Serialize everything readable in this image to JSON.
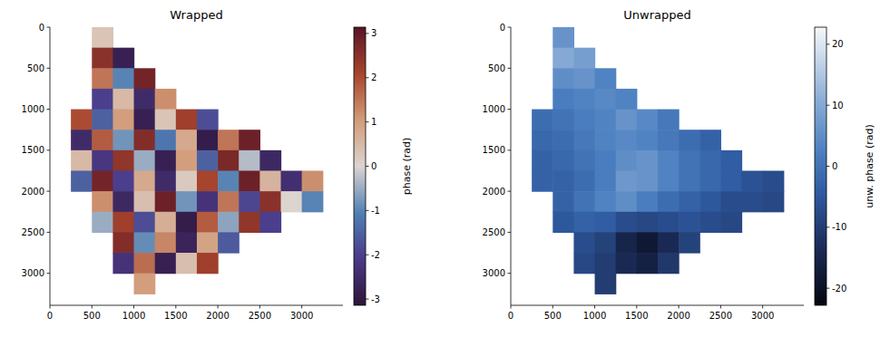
{
  "chart_data": [
    {
      "type": "heatmap",
      "title": "Wrapped",
      "x": [
        125,
        375,
        625,
        875,
        1125,
        1375,
        1625,
        1875,
        2125,
        2375,
        2625,
        2875,
        3125,
        3375
      ],
      "y": [
        125,
        375,
        625,
        875,
        1125,
        1375,
        1625,
        1875,
        2125,
        2375,
        2625,
        2875,
        3125,
        3375
      ],
      "z": [
        [
          null,
          null,
          0.3,
          null,
          null,
          null,
          null,
          null,
          null,
          null,
          null,
          null,
          null,
          null
        ],
        [
          null,
          null,
          2.5,
          -2.8,
          null,
          null,
          null,
          null,
          null,
          null,
          null,
          null,
          null,
          null
        ],
        [
          null,
          null,
          1.5,
          -1.0,
          2.8,
          null,
          null,
          null,
          null,
          null,
          null,
          null,
          null,
          null
        ],
        [
          null,
          null,
          -2.0,
          0.5,
          -2.5,
          1.2,
          null,
          null,
          null,
          null,
          null,
          null,
          null,
          null
        ],
        [
          null,
          2.0,
          -1.5,
          1.0,
          -2.8,
          0.3,
          2.2,
          -1.8,
          null,
          null,
          null,
          null,
          null,
          null
        ],
        [
          null,
          -2.5,
          1.8,
          -0.8,
          2.6,
          -1.2,
          0.8,
          -2.9,
          1.5,
          2.9,
          null,
          null,
          null,
          null
        ],
        [
          null,
          0.5,
          -2.2,
          2.4,
          -0.5,
          -2.8,
          1.0,
          -1.5,
          2.7,
          -0.3,
          -2.6,
          null,
          null,
          null
        ],
        [
          null,
          -1.5,
          2.8,
          -2.0,
          0.8,
          -2.5,
          0.2,
          2.1,
          -1.0,
          2.9,
          0.6,
          -2.4,
          1.2,
          null
        ],
        [
          null,
          null,
          1.2,
          -2.6,
          0.4,
          2.9,
          -0.8,
          -2.3,
          1.5,
          -1.9,
          2.5,
          0.0,
          -1.0,
          null
        ],
        [
          null,
          null,
          -0.5,
          2.2,
          -1.8,
          0.7,
          -2.9,
          1.8,
          -0.6,
          2.4,
          -2.0,
          null,
          null,
          null
        ],
        [
          null,
          null,
          null,
          2.6,
          -0.9,
          1.3,
          -2.7,
          0.9,
          -1.6,
          null,
          null,
          null,
          null,
          null
        ],
        [
          null,
          null,
          null,
          -2.3,
          1.6,
          -2.8,
          0.4,
          2.2,
          null,
          null,
          null,
          null,
          null,
          null
        ],
        [
          null,
          null,
          null,
          null,
          1.0,
          null,
          null,
          null,
          null,
          null,
          null,
          null,
          null,
          null
        ],
        [
          null,
          null,
          null,
          null,
          null,
          null,
          null,
          null,
          null,
          null,
          null,
          null,
          null,
          null
        ]
      ],
      "xlim": [
        0,
        3490
      ],
      "ylim": [
        3390,
        0
      ],
      "xticks": [
        0,
        500,
        1000,
        1500,
        2000,
        2500,
        3000
      ],
      "yticks": [
        0,
        500,
        1000,
        1500,
        2000,
        2500,
        3000
      ],
      "clim": [
        -3.14159,
        3.14159
      ],
      "cticks": [
        -3,
        -2,
        -1,
        0,
        1,
        2,
        3
      ],
      "colorbar_label": "phase (rad)"
    },
    {
      "type": "heatmap",
      "title": "Unwrapped",
      "x": [
        125,
        375,
        625,
        875,
        1125,
        1375,
        1625,
        1875,
        2125,
        2375,
        2625,
        2875,
        3125,
        3375
      ],
      "y": [
        125,
        375,
        625,
        875,
        1125,
        1375,
        1625,
        1875,
        2125,
        2375,
        2625,
        2875,
        3125,
        3375
      ],
      "z": [
        [
          null,
          null,
          6,
          null,
          null,
          null,
          null,
          null,
          null,
          null,
          null,
          null,
          null,
          null
        ],
        [
          null,
          null,
          10,
          8,
          null,
          null,
          null,
          null,
          null,
          null,
          null,
          null,
          null,
          null
        ],
        [
          null,
          null,
          5,
          6,
          3,
          null,
          null,
          null,
          null,
          null,
          null,
          null,
          null,
          null
        ],
        [
          null,
          null,
          2,
          3,
          4,
          3,
          null,
          null,
          null,
          null,
          null,
          null,
          null,
          null
        ],
        [
          null,
          -1,
          0,
          2,
          3,
          6,
          4,
          1,
          null,
          null,
          null,
          null,
          null,
          null
        ],
        [
          null,
          -2,
          -1,
          1,
          3,
          4,
          3,
          1,
          -1,
          -3,
          null,
          null,
          null,
          null
        ],
        [
          null,
          -3,
          -2,
          0,
          2,
          5,
          6,
          3,
          0,
          -2,
          -4,
          null,
          null,
          null
        ],
        [
          null,
          -3,
          -3,
          -1,
          2,
          7,
          6,
          3,
          0,
          -2,
          -4,
          -6,
          -7,
          null
        ],
        [
          null,
          null,
          -3,
          0,
          3,
          5,
          2,
          -1,
          -3,
          -5,
          -7,
          -7,
          -8,
          null
        ],
        [
          null,
          null,
          -5,
          -3,
          -4,
          -7,
          -8,
          -7,
          -6,
          -7,
          -8,
          null,
          null,
          null
        ],
        [
          null,
          null,
          null,
          -7,
          -9,
          -15,
          -18,
          -14,
          -9,
          null,
          null,
          null,
          null,
          null
        ],
        [
          null,
          null,
          null,
          -8,
          -10,
          -14,
          -16,
          -11,
          null,
          null,
          null,
          null,
          null,
          null
        ],
        [
          null,
          null,
          null,
          null,
          -10,
          null,
          null,
          null,
          null,
          null,
          null,
          null,
          null,
          null
        ],
        [
          null,
          null,
          null,
          null,
          null,
          null,
          null,
          null,
          null,
          null,
          null,
          null,
          null,
          null
        ]
      ],
      "xlim": [
        0,
        3490
      ],
      "ylim": [
        3390,
        0
      ],
      "xticks": [
        0,
        500,
        1000,
        1500,
        2000,
        2500,
        3000
      ],
      "yticks": [
        0,
        500,
        1000,
        1500,
        2000,
        2500,
        3000
      ],
      "clim": [
        -22.8,
        22.8
      ],
      "cticks": [
        -20,
        -10,
        0,
        10,
        20
      ],
      "colorbar_label": "unw. phase (rad)"
    }
  ]
}
